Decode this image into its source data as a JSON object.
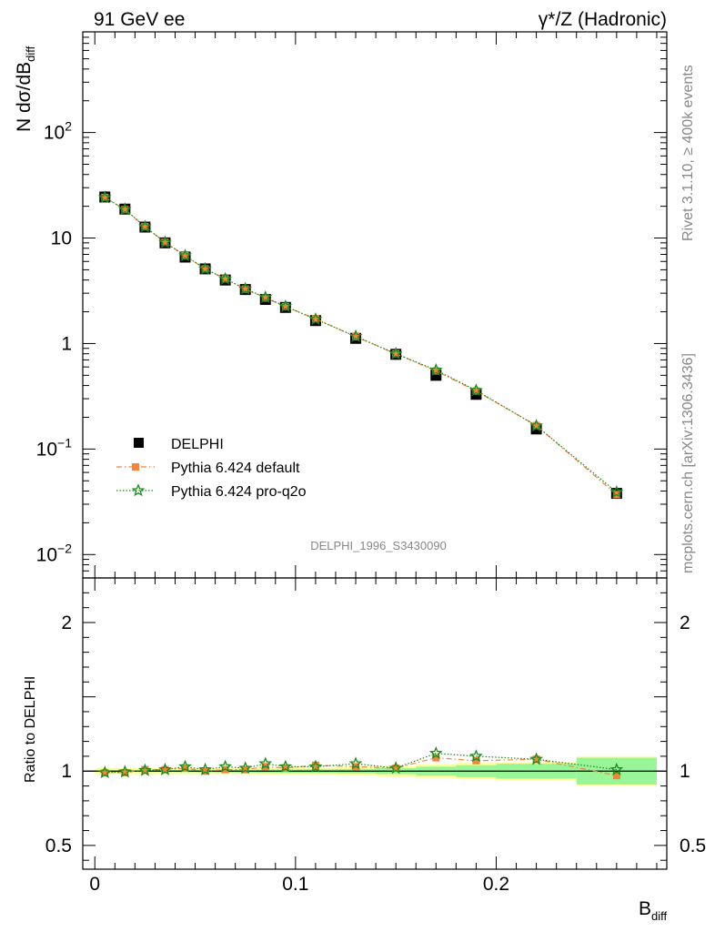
{
  "header": {
    "left": "91 GeV ee",
    "right": "γ*/Z (Hadronic)"
  },
  "side": {
    "rivet": "Rivet 3.1.10, ≥ 400k events",
    "mcplots": "mcplots.cern.ch [arXiv:1306.3436]"
  },
  "analysis_id": "DELPHI_1996_S3430090",
  "chart_data": {
    "type": "scatter",
    "title": "91 GeV ee — γ*/Z (Hadronic)",
    "xlabel": "B",
    "xlabel_sub": "diff",
    "ylabel": "N dσ/dB",
    "ylabel_sub": "diff",
    "ratio_ylabel": "Ratio to DELPHI",
    "xlim": [
      -0.006,
      0.285
    ],
    "ylim": [
      0.006,
      900
    ],
    "ylog": true,
    "ratio_ylim": [
      0.34,
      2.3
    ],
    "x_ticks": [
      {
        "value": 0,
        "label": "0"
      },
      {
        "value": 0.1,
        "label": "0.1"
      },
      {
        "value": 0.2,
        "label": "0.2"
      }
    ],
    "y_ticks": [
      {
        "value": 0.01,
        "base": "10",
        "exp": "−2"
      },
      {
        "value": 0.1,
        "base": "10",
        "exp": "−1"
      },
      {
        "value": 1,
        "base": "1",
        "exp": ""
      },
      {
        "value": 10,
        "base": "10",
        "exp": ""
      },
      {
        "value": 100,
        "base": "10",
        "exp": "2"
      }
    ],
    "ratio_ticks": [
      {
        "value": 0.5,
        "label": "0.5"
      },
      {
        "value": 1,
        "label": "1"
      },
      {
        "value": 2,
        "label": "2"
      }
    ],
    "bins": [
      [
        0.0,
        0.01
      ],
      [
        0.01,
        0.02
      ],
      [
        0.02,
        0.03
      ],
      [
        0.03,
        0.04
      ],
      [
        0.04,
        0.05
      ],
      [
        0.05,
        0.06
      ],
      [
        0.06,
        0.07
      ],
      [
        0.07,
        0.08
      ],
      [
        0.08,
        0.09
      ],
      [
        0.09,
        0.1
      ],
      [
        0.1,
        0.12
      ],
      [
        0.12,
        0.14
      ],
      [
        0.14,
        0.16
      ],
      [
        0.16,
        0.18
      ],
      [
        0.18,
        0.2
      ],
      [
        0.2,
        0.24
      ],
      [
        0.24,
        0.28
      ]
    ],
    "x": [
      0.005,
      0.015,
      0.025,
      0.035,
      0.045,
      0.055,
      0.065,
      0.075,
      0.085,
      0.095,
      0.11,
      0.13,
      0.15,
      0.17,
      0.19,
      0.22,
      0.26
    ],
    "series": [
      {
        "name": "DELPHI",
        "marker": "square",
        "color": "#000000",
        "values": [
          24.5,
          18.8,
          12.7,
          9.0,
          6.6,
          5.1,
          4.0,
          3.25,
          2.62,
          2.2,
          1.65,
          1.12,
          0.79,
          0.5,
          0.33,
          0.155,
          0.038
        ]
      },
      {
        "name": "Pythia 6.424 default",
        "marker": "filled-square",
        "line": "dash-dot",
        "color": "#f5833a",
        "values": [
          24.3,
          18.6,
          12.8,
          9.1,
          6.8,
          5.1,
          4.1,
          3.28,
          2.7,
          2.24,
          1.72,
          1.16,
          0.8,
          0.55,
          0.355,
          0.167,
          0.037
        ]
      },
      {
        "name": "Pythia 6.424 pro-q2o",
        "marker": "star",
        "line": "dotted",
        "color": "#1a8a1a",
        "values": [
          24.2,
          18.7,
          12.8,
          9.1,
          6.8,
          5.1,
          4.1,
          3.3,
          2.74,
          2.25,
          1.7,
          1.17,
          0.8,
          0.56,
          0.36,
          0.166,
          0.039
        ]
      }
    ],
    "ratios": {
      "default": [
        0.99,
        0.99,
        1.01,
        1.01,
        1.02,
        1.0,
        1.01,
        1.01,
        1.03,
        1.02,
        1.04,
        1.03,
        1.02,
        1.09,
        1.07,
        1.08,
        0.97
      ],
      "proq2o": [
        0.99,
        0.995,
        1.005,
        1.01,
        1.03,
        1.01,
        1.03,
        1.02,
        1.05,
        1.03,
        1.03,
        1.05,
        1.02,
        1.12,
        1.1,
        1.08,
        1.01
      ]
    },
    "bands": {
      "stat": [
        0.005,
        0.005,
        0.006,
        0.006,
        0.007,
        0.008,
        0.009,
        0.01,
        0.011,
        0.012,
        0.013,
        0.015,
        0.02,
        0.03,
        0.04,
        0.05,
        0.09
      ],
      "total": [
        0.02,
        0.02,
        0.02,
        0.02,
        0.02,
        0.02,
        0.02,
        0.02,
        0.025,
        0.025,
        0.025,
        0.03,
        0.035,
        0.045,
        0.055,
        0.06,
        0.1
      ]
    },
    "band_colors": {
      "total": "#ffff99",
      "stat": "#98f598"
    },
    "legend_position": "lower-left"
  }
}
